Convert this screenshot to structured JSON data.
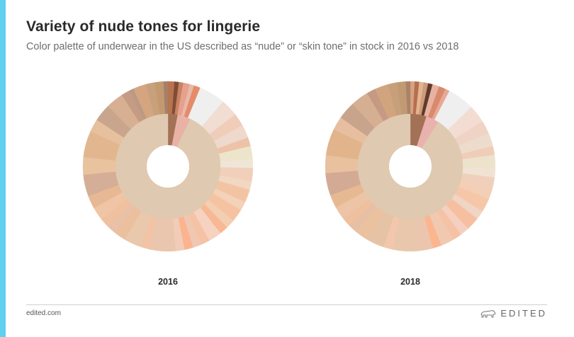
{
  "header": {
    "title": "Variety of nude tones for lingerie",
    "subtitle": "Color palette of underwear in the US described as “nude” or “skin tone” in stock in 2016 vs 2018"
  },
  "footer": {
    "url": "edited.com",
    "brand": "EDITED"
  },
  "icons": {
    "brand": "polar-bear-icon"
  },
  "colors": {
    "accent_bar": "#5fd0f0",
    "title": "#2a2a2a",
    "subtitle": "#6e6e6e"
  },
  "chart_data": [
    {
      "type": "pie",
      "label": "2016",
      "inner": [
        {
          "color": "#a37155",
          "value": 3
        },
        {
          "color": "#e9b2a6",
          "value": 4
        },
        {
          "color": "#dfc9b0",
          "value": 93
        }
      ],
      "outer": [
        {
          "color": "#b9744e",
          "value": 1.5
        },
        {
          "color": "#7e4d36",
          "value": 1
        },
        {
          "color": "#c98362",
          "value": 1
        },
        {
          "color": "#e6a08e",
          "value": 1.5
        },
        {
          "color": "#eab8a9",
          "value": 1
        },
        {
          "color": "#e58b6a",
          "value": 1.5
        },
        {
          "color": "#efefef",
          "value": 6
        },
        {
          "color": "#f2ddd2",
          "value": 4
        },
        {
          "color": "#f0cdb9",
          "value": 3
        },
        {
          "color": "#efd8cc",
          "value": 3
        },
        {
          "color": "#ecc2a8",
          "value": 2
        },
        {
          "color": "#ede4cc",
          "value": 3
        },
        {
          "color": "#f0e6d8",
          "value": 2
        },
        {
          "color": "#f0d0ba",
          "value": 3
        },
        {
          "color": "#f2d7c2",
          "value": 2
        },
        {
          "color": "#f3c4a4",
          "value": 3
        },
        {
          "color": "#f2d2b8",
          "value": 2
        },
        {
          "color": "#f6c3a2",
          "value": 3
        },
        {
          "color": "#f3cfb1",
          "value": 2
        },
        {
          "color": "#f8b893",
          "value": 2
        },
        {
          "color": "#f6d2c0",
          "value": 3
        },
        {
          "color": "#f5c2a6",
          "value": 2
        },
        {
          "color": "#f0c7b1",
          "value": 2
        },
        {
          "color": "#fbb48f",
          "value": 2
        },
        {
          "color": "#f2ccb8",
          "value": 2
        },
        {
          "color": "#e9c6ad",
          "value": 6
        },
        {
          "color": "#f2c3a5",
          "value": 2
        },
        {
          "color": "#e9c8ac",
          "value": 4
        },
        {
          "color": "#eac09e",
          "value": 3
        },
        {
          "color": "#e8c1a7",
          "value": 2
        },
        {
          "color": "#f0c09f",
          "value": 2
        },
        {
          "color": "#efc5a6",
          "value": 3
        },
        {
          "color": "#e6b994",
          "value": 3
        },
        {
          "color": "#d4ae96",
          "value": 5
        },
        {
          "color": "#e9c29e",
          "value": 4
        },
        {
          "color": "#e2b68f",
          "value": 6
        },
        {
          "color": "#e7c09e",
          "value": 3
        },
        {
          "color": "#c9a58e",
          "value": 4
        },
        {
          "color": "#d7af92",
          "value": 4
        },
        {
          "color": "#c59b83",
          "value": 2
        },
        {
          "color": "#ba9a84",
          "value": 1
        },
        {
          "color": "#d4a57f",
          "value": 3
        },
        {
          "color": "#c7a07c",
          "value": 2
        },
        {
          "color": "#c39a70",
          "value": 2
        },
        {
          "color": "#a6806a",
          "value": 1
        }
      ]
    },
    {
      "type": "pie",
      "label": "2018",
      "inner": [
        {
          "color": "#a37155",
          "value": 5
        },
        {
          "color": "#eab2ae",
          "value": 4
        },
        {
          "color": "#dfc9b0",
          "value": 91
        }
      ],
      "outer": [
        {
          "color": "#d6a37f",
          "value": 1
        },
        {
          "color": "#b56f4f",
          "value": 1
        },
        {
          "color": "#e2b58f",
          "value": 1
        },
        {
          "color": "#cf9a7b",
          "value": 1
        },
        {
          "color": "#5e3b2c",
          "value": 1
        },
        {
          "color": "#e8b2a2",
          "value": 1.5
        },
        {
          "color": "#d98a6c",
          "value": 1.5
        },
        {
          "color": "#e7a894",
          "value": 1
        },
        {
          "color": "#efefef",
          "value": 6
        },
        {
          "color": "#f3ddd2",
          "value": 4
        },
        {
          "color": "#efd3c5",
          "value": 3
        },
        {
          "color": "#eddccb",
          "value": 3
        },
        {
          "color": "#f0cdb8",
          "value": 2
        },
        {
          "color": "#ede3cd",
          "value": 3
        },
        {
          "color": "#f0e3d4",
          "value": 2
        },
        {
          "color": "#f0d0bb",
          "value": 3
        },
        {
          "color": "#f3cfb5",
          "value": 2
        },
        {
          "color": "#f5c6a8",
          "value": 3
        },
        {
          "color": "#f0d4c4",
          "value": 2
        },
        {
          "color": "#f6c0a0",
          "value": 3
        },
        {
          "color": "#f5d0c0",
          "value": 2
        },
        {
          "color": "#f5c2a5",
          "value": 2
        },
        {
          "color": "#f0c9b0",
          "value": 3
        },
        {
          "color": "#fbb690",
          "value": 2
        },
        {
          "color": "#ecc5ae",
          "value": 3
        },
        {
          "color": "#e8c7ac",
          "value": 6
        },
        {
          "color": "#f3c7ab",
          "value": 2
        },
        {
          "color": "#e7c3a6",
          "value": 4
        },
        {
          "color": "#eac29f",
          "value": 3
        },
        {
          "color": "#e6bfa5",
          "value": 2
        },
        {
          "color": "#eec09d",
          "value": 2
        },
        {
          "color": "#edc4a6",
          "value": 3
        },
        {
          "color": "#e6b993",
          "value": 3
        },
        {
          "color": "#d3ab94",
          "value": 5
        },
        {
          "color": "#e9c19e",
          "value": 4
        },
        {
          "color": "#e2b48c",
          "value": 6
        },
        {
          "color": "#e7bfa0",
          "value": 3
        },
        {
          "color": "#c8a48c",
          "value": 4
        },
        {
          "color": "#d6ae92",
          "value": 4
        },
        {
          "color": "#c49a82",
          "value": 2
        },
        {
          "color": "#d2a47e",
          "value": 3
        },
        {
          "color": "#c69f7b",
          "value": 2
        },
        {
          "color": "#c29a72",
          "value": 2
        },
        {
          "color": "#a9826a",
          "value": 1
        }
      ]
    }
  ]
}
